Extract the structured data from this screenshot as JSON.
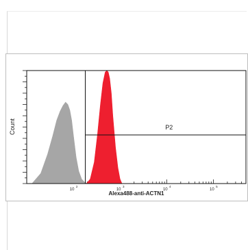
{
  "chart_data": {
    "type": "area",
    "xlabel": "Alexa488-anti-ACTN1",
    "ylabel": "Count",
    "x_scale": "log",
    "xlim": [
      10,
      500000
    ],
    "ylim": [
      0,
      1000
    ],
    "x_ticks": [
      {
        "value": 100,
        "base": "10",
        "exp": "2"
      },
      {
        "value": 1000,
        "base": "10",
        "exp": "3"
      },
      {
        "value": 10000,
        "base": "10",
        "exp": "4"
      },
      {
        "value": 100000,
        "base": "10",
        "exp": "5"
      }
    ],
    "series": [
      {
        "color": "#a6a6a6",
        "x": [
          13,
          20,
          28,
          36,
          44,
          52,
          60,
          68,
          76,
          84,
          92,
          100,
          115,
          130,
          150,
          175,
          200
        ],
        "y": [
          0,
          90,
          260,
          420,
          560,
          640,
          690,
          720,
          700,
          650,
          560,
          430,
          230,
          110,
          40,
          10,
          0
        ]
      },
      {
        "color": "#ee1f2f",
        "x": [
          190,
          230,
          280,
          330,
          380,
          430,
          480,
          520,
          560,
          600,
          650,
          700,
          800,
          900,
          1000,
          1100
        ],
        "y": [
          0,
          40,
          190,
          440,
          700,
          890,
          985,
          1000,
          985,
          930,
          800,
          600,
          320,
          140,
          40,
          0
        ]
      }
    ],
    "gates": [
      {
        "label": "P2",
        "x_start": 180,
        "x_end": 500000,
        "y_divider": 430
      }
    ]
  }
}
